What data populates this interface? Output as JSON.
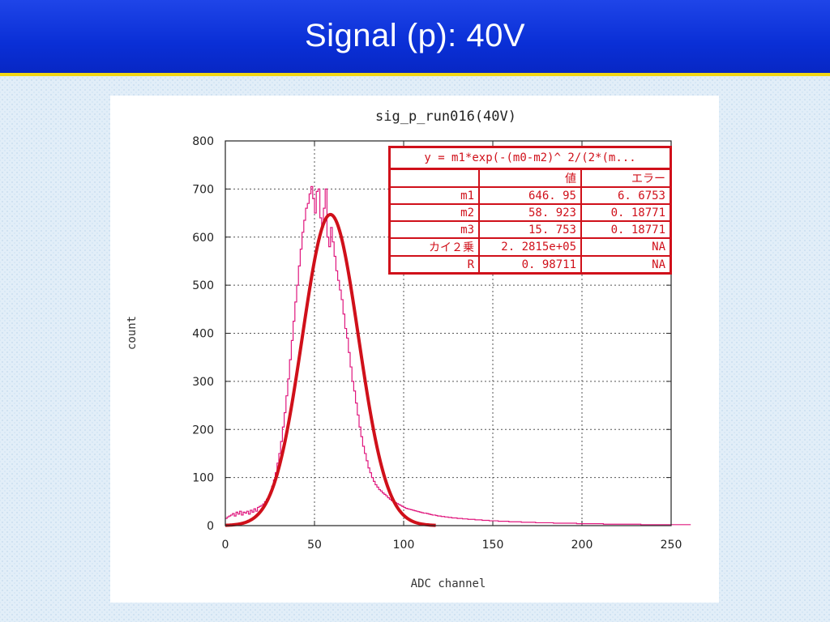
{
  "slide": {
    "title": "Signal (p):  40V"
  },
  "chart_data": {
    "type": "histogram",
    "title": "sig_p_run016(40V)",
    "xlabel": "ADC channel",
    "ylabel": "count",
    "xlim": [
      0,
      250
    ],
    "ylim": [
      0,
      800
    ],
    "xticks": [
      0,
      50,
      100,
      150,
      200,
      250
    ],
    "yticks": [
      0,
      100,
      200,
      300,
      400,
      500,
      600,
      700,
      800
    ],
    "grid": true,
    "bin_width": 1,
    "histogram": {
      "name": "sig_p_run016",
      "color": "#e0187e",
      "x_start": 0,
      "values": [
        15,
        18,
        20,
        22,
        25,
        20,
        28,
        24,
        30,
        22,
        28,
        26,
        30,
        24,
        32,
        28,
        35,
        30,
        38,
        40,
        42,
        45,
        50,
        55,
        60,
        70,
        82,
        95,
        110,
        130,
        150,
        175,
        205,
        235,
        270,
        305,
        345,
        385,
        425,
        465,
        500,
        540,
        575,
        610,
        635,
        660,
        670,
        690,
        705,
        680,
        650,
        695,
        700,
        640,
        620,
        660,
        700,
        600,
        580,
        620,
        590,
        560,
        530,
        510,
        490,
        470,
        440,
        410,
        390,
        360,
        330,
        300,
        280,
        255,
        230,
        205,
        185,
        165,
        150,
        135,
        120,
        110,
        100,
        92,
        85,
        80,
        75,
        72,
        68,
        65,
        62,
        58,
        55,
        52,
        50,
        48,
        46,
        44,
        42,
        40,
        38,
        36,
        35,
        34,
        33,
        32,
        31,
        30,
        29,
        28,
        27,
        26,
        26,
        25,
        24,
        23,
        22,
        22,
        21,
        20,
        20,
        19,
        19,
        18,
        18,
        17,
        17,
        16,
        16,
        16,
        15,
        15,
        15,
        14,
        14,
        14,
        13,
        13,
        13,
        13,
        12,
        12,
        12,
        12,
        11,
        11,
        11,
        11,
        10,
        10,
        10,
        10,
        10,
        9,
        9,
        9,
        9,
        9,
        9,
        8,
        8,
        8,
        8,
        8,
        8,
        8,
        7,
        7,
        7,
        7,
        7,
        7,
        7,
        7,
        6,
        6,
        6,
        6,
        6,
        6,
        6,
        6,
        6,
        6,
        5,
        5,
        5,
        5,
        5,
        5,
        5,
        5,
        5,
        5,
        5,
        5,
        5,
        4,
        4,
        4,
        4,
        4,
        4,
        4,
        4,
        4,
        4,
        4,
        4,
        4,
        4,
        4,
        3,
        3,
        3,
        3,
        3,
        3,
        3,
        3,
        3,
        3,
        3,
        3,
        3,
        3,
        3,
        3,
        3,
        3,
        3,
        3,
        3,
        2,
        2,
        2,
        2,
        2,
        2,
        2,
        2,
        2,
        2,
        2,
        2,
        2,
        2,
        2,
        2,
        2,
        2,
        2,
        2,
        2,
        2,
        2,
        2,
        2,
        2,
        2,
        2
      ]
    },
    "fit": {
      "color": "#d0101a",
      "m1": 646.95,
      "m2": 58.923,
      "m3": 15.753,
      "x_range": [
        0,
        118
      ]
    }
  },
  "fit_table": {
    "equation": "y = m1*exp(-(m0-m2)^ 2/(2*(m...",
    "headers": [
      "",
      "値",
      "エラー"
    ],
    "rows": [
      [
        "m1",
        "646. 95",
        "6. 6753"
      ],
      [
        "m2",
        "58. 923",
        "0. 18771"
      ],
      [
        "m3",
        "15. 753",
        "0. 18771"
      ],
      [
        "カイ２乗",
        "2. 2815e+05",
        "NA"
      ],
      [
        "R",
        "0. 98711",
        "NA"
      ]
    ]
  }
}
